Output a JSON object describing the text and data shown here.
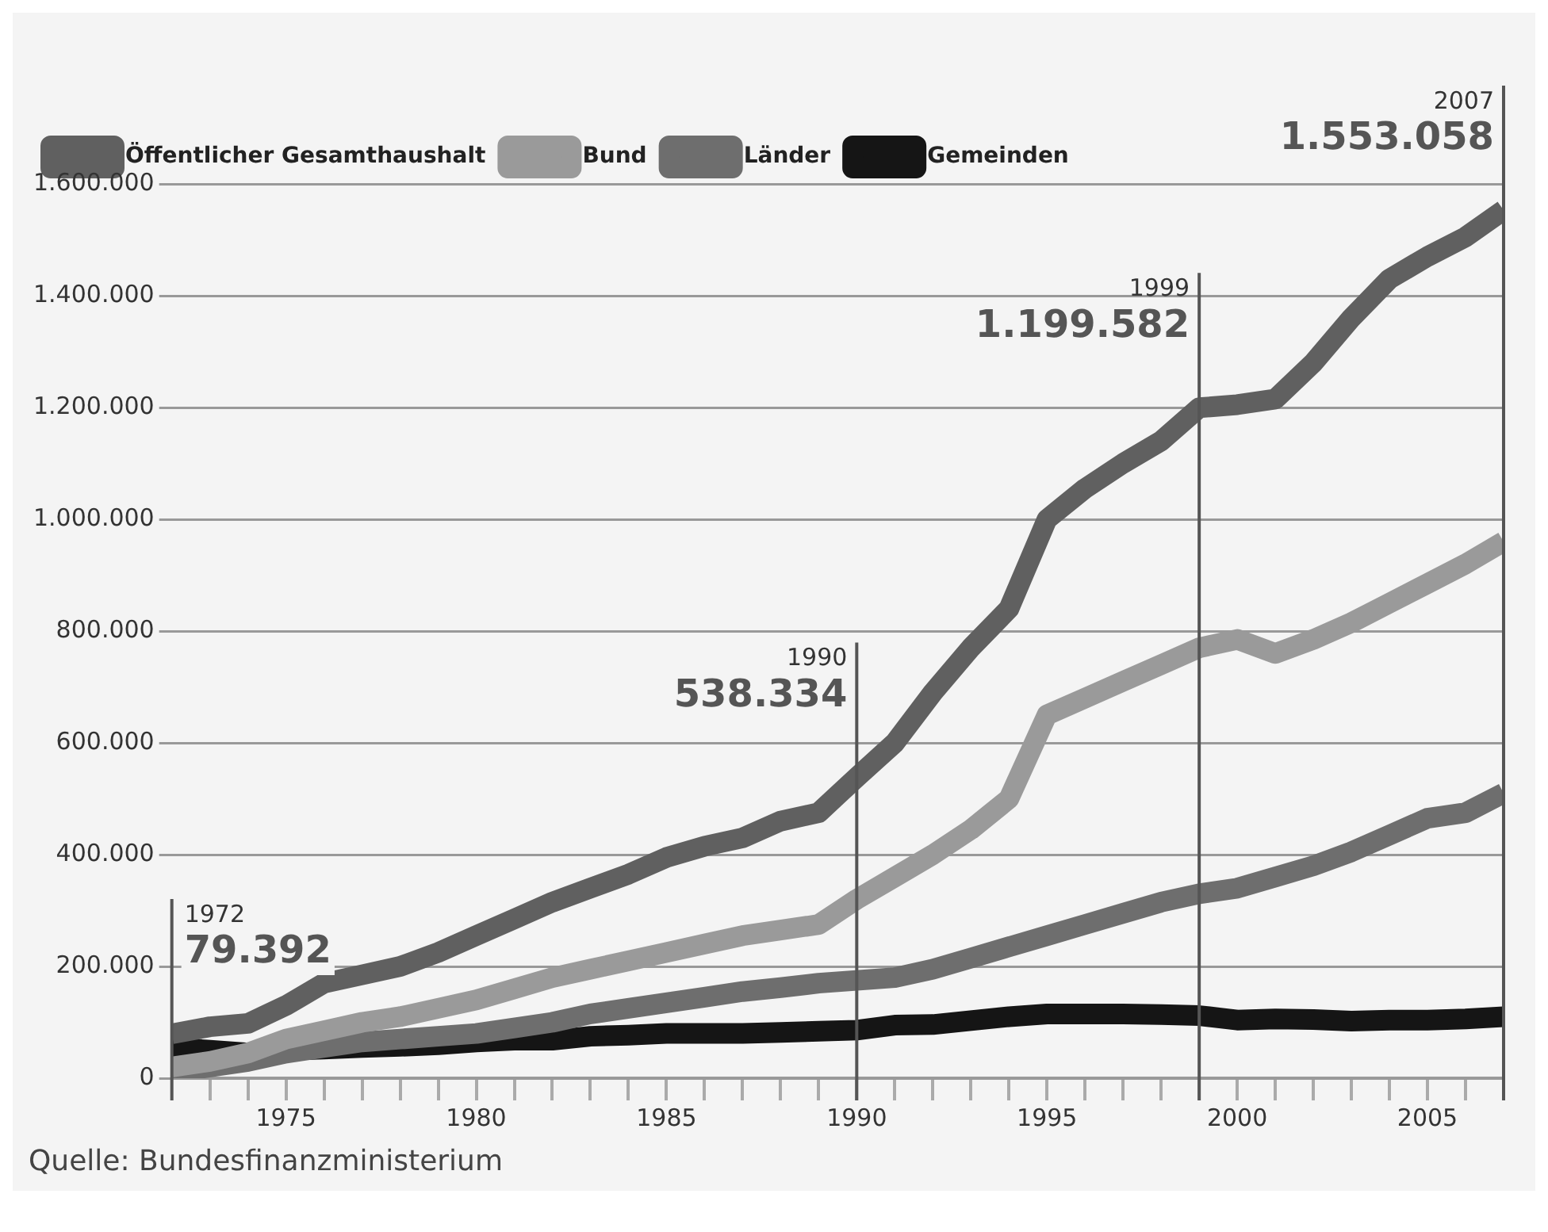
{
  "chart_data": {
    "type": "line",
    "x": [
      1972,
      1973,
      1974,
      1975,
      1976,
      1977,
      1978,
      1979,
      1980,
      1981,
      1982,
      1983,
      1984,
      1985,
      1986,
      1987,
      1988,
      1989,
      1990,
      1991,
      1992,
      1993,
      1994,
      1995,
      1996,
      1997,
      1998,
      1999,
      2000,
      2001,
      2002,
      2003,
      2004,
      2005,
      2006,
      2007
    ],
    "series": [
      {
        "name": "Öffentlicher Gesamthaushalt",
        "color": "#606060",
        "values": [
          79392,
          92000,
          98000,
          130000,
          170000,
          185000,
          200000,
          225000,
          255000,
          285000,
          315000,
          340000,
          365000,
          395000,
          415000,
          430000,
          460000,
          475000,
          538334,
          600000,
          690000,
          770000,
          840000,
          1000000,
          1055000,
          1100000,
          1140000,
          1199582,
          1205000,
          1215000,
          1280000,
          1360000,
          1430000,
          1470000,
          1505000,
          1553058
        ]
      },
      {
        "name": "Bund",
        "color": "#9a9a9a",
        "values": [
          20000,
          30000,
          45000,
          70000,
          85000,
          100000,
          110000,
          125000,
          140000,
          160000,
          180000,
          195000,
          210000,
          225000,
          240000,
          255000,
          265000,
          275000,
          320000,
          360000,
          400000,
          445000,
          500000,
          650000,
          680000,
          710000,
          740000,
          770000,
          785000,
          760000,
          785000,
          815000,
          850000,
          885000,
          920000,
          960000
        ]
      },
      {
        "name": "Länder",
        "color": "#6e6e6e",
        "values": [
          10000,
          20000,
          30000,
          45000,
          55000,
          65000,
          70000,
          75000,
          80000,
          90000,
          100000,
          115000,
          125000,
          135000,
          145000,
          155000,
          162000,
          170000,
          175000,
          180000,
          195000,
          215000,
          235000,
          255000,
          275000,
          295000,
          315000,
          330000,
          340000,
          360000,
          380000,
          405000,
          435000,
          465000,
          475000,
          510000
        ]
      },
      {
        "name": "Gemeinden",
        "color": "#151515",
        "values": [
          55000,
          50000,
          45000,
          50000,
          52000,
          55000,
          57000,
          60000,
          65000,
          68000,
          68000,
          75000,
          77000,
          80000,
          80000,
          80000,
          82000,
          84000,
          86000,
          95000,
          96000,
          103000,
          110000,
          115000,
          115000,
          115000,
          114000,
          112000,
          104000,
          106000,
          105000,
          102000,
          104000,
          104000,
          106000,
          110000
        ]
      }
    ],
    "xlim": [
      1972,
      2007
    ],
    "xticks": [
      {
        "value": 1973,
        "label": null
      },
      {
        "value": 1974,
        "label": null
      },
      1975,
      {
        "value": 1976,
        "label": null
      },
      {
        "value": 1977,
        "label": null
      },
      {
        "value": 1978,
        "label": null
      },
      {
        "value": 1979,
        "label": null
      },
      1980,
      {
        "value": 1981,
        "label": null
      },
      {
        "value": 1982,
        "label": null
      },
      {
        "value": 1983,
        "label": null
      },
      {
        "value": 1984,
        "label": null
      },
      1985,
      {
        "value": 1986,
        "label": null
      },
      {
        "value": 1987,
        "label": null
      },
      {
        "value": 1988,
        "label": null
      },
      {
        "value": 1989,
        "label": null
      },
      1990,
      {
        "value": 1991,
        "label": null
      },
      {
        "value": 1992,
        "label": null
      },
      {
        "value": 1993,
        "label": null
      },
      {
        "value": 1994,
        "label": null
      },
      1995,
      {
        "value": 1996,
        "label": null
      },
      {
        "value": 1997,
        "label": null
      },
      {
        "value": 1998,
        "label": null
      },
      {
        "value": 1999,
        "label": null
      },
      2000,
      {
        "value": 2001,
        "label": null
      },
      {
        "value": 2002,
        "label": null
      },
      {
        "value": 2003,
        "label": null
      },
      {
        "value": 2004,
        "label": null
      },
      2005,
      {
        "value": 2006,
        "label": null
      }
    ],
    "ylim": [
      0,
      1600000
    ],
    "yticks": [
      0,
      {
        "value": 200000,
        "label": "200.000"
      },
      {
        "value": 400000,
        "label": "400.000"
      },
      {
        "value": 600000,
        "label": "600.000"
      },
      {
        "value": 800000,
        "label": "800.000"
      },
      {
        "value": 1000000,
        "label": "1.000.000"
      },
      {
        "value": 1200000,
        "label": "1.200.000"
      },
      {
        "value": 1400000,
        "label": "1.400.000"
      },
      {
        "value": 1600000,
        "label": "1.600.000"
      }
    ],
    "grid": "y",
    "legend": "top left",
    "marker": "none",
    "line_style": "solid",
    "ref_lines": [
      {
        "axis": "x",
        "value": 1972,
        "label": "1972",
        "color": "#555555"
      },
      {
        "axis": "x",
        "value": 1990,
        "label": "1990",
        "color": "#555555"
      },
      {
        "axis": "x",
        "value": 1999,
        "label": "1999",
        "color": "#555555"
      },
      {
        "axis": "x",
        "value": 2007,
        "label": "2007",
        "color": "#555555"
      }
    ],
    "annotations": [
      {
        "text": "79.392",
        "x": 1972,
        "y": 79392
      },
      {
        "text": "538.334",
        "x": 1990,
        "y": 538334
      },
      {
        "text": "1.199.582",
        "x": 1999,
        "y": 1199582
      },
      {
        "text": "1.553.058",
        "x": 2007,
        "y": 1553058
      },
      "Quelle: Bundesfinanzministerium"
    ]
  }
}
